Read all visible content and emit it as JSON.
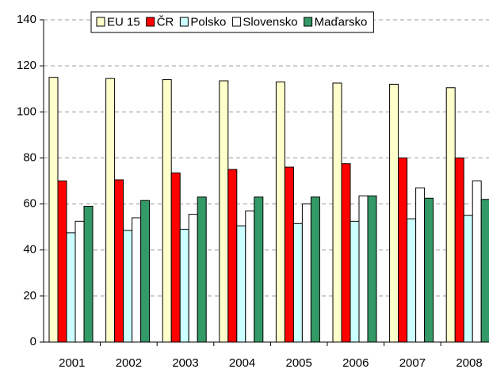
{
  "chart_data": {
    "type": "bar",
    "categories": [
      "2001",
      "2002",
      "2003",
      "2004",
      "2005",
      "2006",
      "2007",
      "2008"
    ],
    "series": [
      {
        "name": "EU 15",
        "color": "#ffffcc",
        "values": [
          115,
          114.5,
          114,
          113.5,
          113,
          112.5,
          112,
          110.5
        ]
      },
      {
        "name": "ČR",
        "color": "#ff0000",
        "values": [
          70,
          70.5,
          73.5,
          75,
          76,
          77.5,
          80,
          80
        ]
      },
      {
        "name": "Polsko",
        "color": "#ccffff",
        "values": [
          47.5,
          48.5,
          49,
          50.5,
          51.5,
          52.5,
          53.5,
          55
        ]
      },
      {
        "name": "Slovensko",
        "color": "#ffffff",
        "values": [
          52.5,
          54,
          55.5,
          57,
          60,
          63.5,
          67,
          70
        ]
      },
      {
        "name": "Maďarsko",
        "color": "#339966",
        "values": [
          59,
          61.5,
          63,
          63,
          63,
          63.5,
          62.5,
          62
        ]
      }
    ],
    "ylim": [
      0,
      140
    ],
    "yticks": [
      0,
      20,
      40,
      60,
      80,
      100,
      120,
      140
    ],
    "grid": true,
    "legend": "top"
  }
}
